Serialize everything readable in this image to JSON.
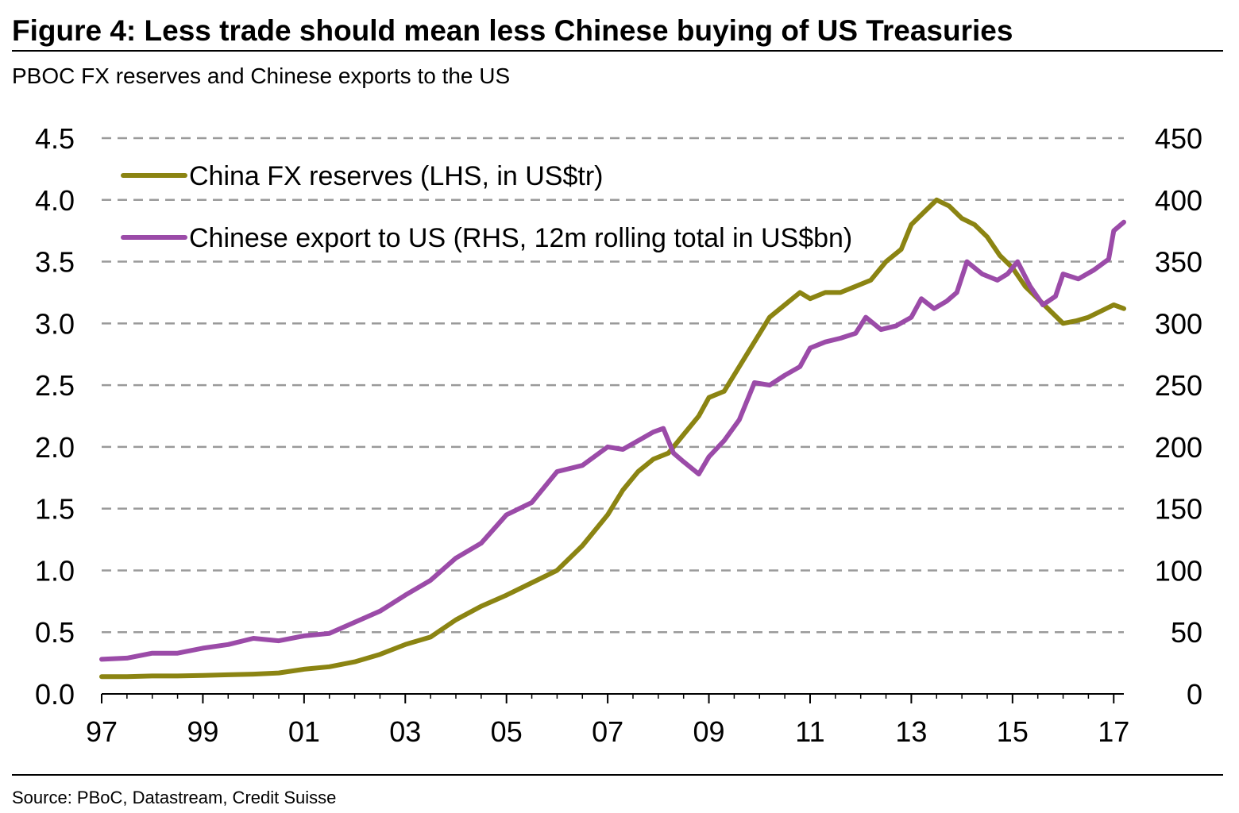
{
  "title": "Figure 4: Less trade should mean less Chinese buying of US Treasuries",
  "subtitle": "PBOC FX reserves and Chinese exports to the US",
  "source": "Source: PBoC, Datastream, Credit Suisse",
  "colors": {
    "reserves": "#8B8412",
    "exports": "#9B4BA8",
    "grid": "#9a9a9a",
    "axis": "#000000"
  },
  "chart_data": {
    "type": "line",
    "title": "PBOC FX reserves and Chinese exports to the US",
    "x_tick_labels": [
      "97",
      "99",
      "01",
      "03",
      "05",
      "07",
      "09",
      "11",
      "13",
      "15",
      "17"
    ],
    "x_tick_years": [
      1997,
      1999,
      2001,
      2003,
      2005,
      2007,
      2009,
      2011,
      2013,
      2015,
      2017
    ],
    "xlim": [
      1997,
      2017.2
    ],
    "y_left": {
      "ticks": [
        "0.0",
        "0.5",
        "1.0",
        "1.5",
        "2.0",
        "2.5",
        "3.0",
        "3.5",
        "4.0",
        "4.5"
      ],
      "ylim": [
        0,
        4.5
      ]
    },
    "y_right": {
      "ticks": [
        "0",
        "50",
        "100",
        "150",
        "200",
        "250",
        "300",
        "350",
        "400",
        "450"
      ],
      "ylim": [
        0,
        450
      ]
    },
    "grid": true,
    "legend_position": "top-left",
    "series": [
      {
        "name": "China FX reserves (LHS, in US$tr)",
        "axis": "left",
        "x": [
          1997.0,
          1997.5,
          1998.0,
          1998.5,
          1999.0,
          1999.5,
          2000.0,
          2000.5,
          2001.0,
          2001.5,
          2002.0,
          2002.5,
          2003.0,
          2003.5,
          2004.0,
          2004.5,
          2005.0,
          2005.5,
          2006.0,
          2006.5,
          2007.0,
          2007.3,
          2007.6,
          2007.9,
          2008.2,
          2008.5,
          2008.8,
          2009.0,
          2009.3,
          2009.6,
          2009.9,
          2010.2,
          2010.5,
          2010.8,
          2011.0,
          2011.3,
          2011.6,
          2011.9,
          2012.2,
          2012.5,
          2012.8,
          2013.0,
          2013.25,
          2013.5,
          2013.75,
          2014.0,
          2014.25,
          2014.5,
          2014.75,
          2015.0,
          2015.25,
          2015.5,
          2015.75,
          2016.0,
          2016.25,
          2016.5,
          2016.75,
          2017.0,
          2017.2
        ],
        "values": [
          0.14,
          0.14,
          0.145,
          0.145,
          0.15,
          0.155,
          0.16,
          0.17,
          0.2,
          0.22,
          0.26,
          0.32,
          0.4,
          0.46,
          0.6,
          0.71,
          0.8,
          0.9,
          1.0,
          1.2,
          1.45,
          1.65,
          1.8,
          1.9,
          1.95,
          2.1,
          2.25,
          2.4,
          2.45,
          2.65,
          2.85,
          3.05,
          3.15,
          3.25,
          3.2,
          3.25,
          3.25,
          3.3,
          3.35,
          3.5,
          3.6,
          3.8,
          3.9,
          4.0,
          3.95,
          3.85,
          3.8,
          3.7,
          3.55,
          3.45,
          3.3,
          3.2,
          3.1,
          3.0,
          3.02,
          3.05,
          3.1,
          3.15,
          3.12
        ]
      },
      {
        "name": "Chinese export to US (RHS, 12m rolling total in US$bn)",
        "axis": "right",
        "x": [
          1997.0,
          1997.5,
          1998.0,
          1998.5,
          1999.0,
          1999.5,
          2000.0,
          2000.5,
          2001.0,
          2001.5,
          2002.0,
          2002.5,
          2003.0,
          2003.5,
          2004.0,
          2004.5,
          2005.0,
          2005.5,
          2006.0,
          2006.5,
          2007.0,
          2007.3,
          2007.6,
          2007.9,
          2008.1,
          2008.3,
          2008.5,
          2008.8,
          2009.0,
          2009.3,
          2009.6,
          2009.9,
          2010.2,
          2010.5,
          2010.8,
          2011.0,
          2011.3,
          2011.6,
          2011.9,
          2012.1,
          2012.4,
          2012.7,
          2013.0,
          2013.2,
          2013.45,
          2013.7,
          2013.9,
          2014.1,
          2014.4,
          2014.7,
          2014.9,
          2015.1,
          2015.35,
          2015.6,
          2015.85,
          2016.0,
          2016.3,
          2016.6,
          2016.9,
          2017.0,
          2017.2
        ],
        "values": [
          28,
          29,
          33,
          33,
          37,
          40,
          45,
          43,
          47,
          49,
          58,
          67,
          80,
          92,
          110,
          122,
          145,
          155,
          180,
          185,
          200,
          198,
          205,
          212,
          215,
          195,
          188,
          178,
          192,
          205,
          222,
          252,
          250,
          258,
          265,
          280,
          285,
          288,
          292,
          305,
          295,
          298,
          305,
          320,
          312,
          318,
          325,
          350,
          340,
          335,
          340,
          350,
          330,
          315,
          322,
          340,
          336,
          343,
          352,
          375,
          382
        ]
      }
    ]
  }
}
